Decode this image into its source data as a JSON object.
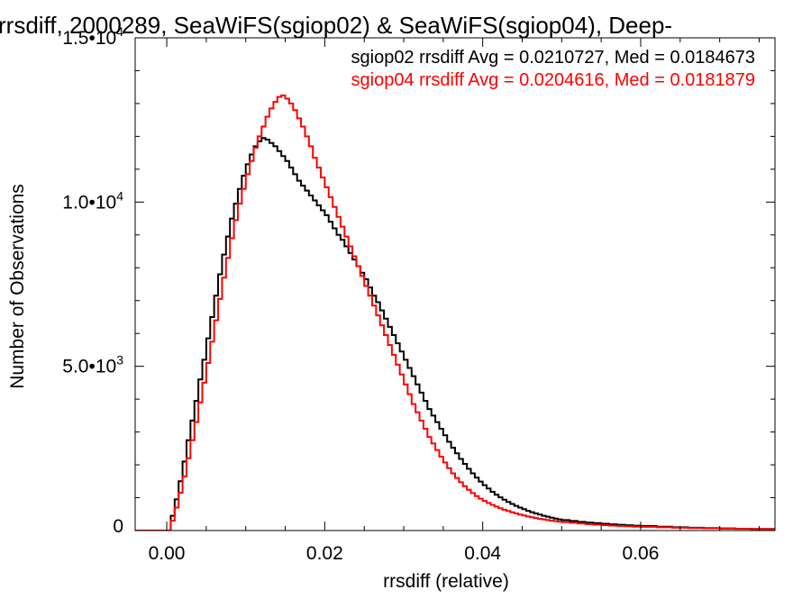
{
  "chart_data": {
    "type": "line",
    "step": true,
    "title": "rrsdiff, 2000289, SeaWiFS(sgiop02) & SeaWiFS(sgiop04), Deep-",
    "xlabel": "rrsdiff (relative)",
    "ylabel": "Number of Observations",
    "xlim": [
      -0.004,
      0.077
    ],
    "ylim": [
      0,
      15000
    ],
    "x_ticks": [
      {
        "value": 0.0,
        "label": "0.00"
      },
      {
        "value": 0.02,
        "label": "0.02"
      },
      {
        "value": 0.04,
        "label": "0.04"
      },
      {
        "value": 0.06,
        "label": "0.06"
      }
    ],
    "y_ticks": [
      {
        "value": 0,
        "label": "0",
        "exp": ""
      },
      {
        "value": 5000,
        "label": "5.0•10",
        "exp": "3"
      },
      {
        "value": 10000,
        "label": "1.0•10",
        "exp": "4"
      },
      {
        "value": 15000,
        "label": "1.5•10",
        "exp": "4"
      }
    ],
    "grid": false,
    "annotations": [
      {
        "text": "sgiop02 rrsdiff Avg = 0.0210727, Med = 0.0184673",
        "color": "#000000"
      },
      {
        "text": "sgiop04 rrsdiff Avg = 0.0204616, Med = 0.0181879",
        "color": "#ff0000"
      }
    ],
    "series": [
      {
        "color": "#000000",
        "points": [
          [
            -0.004,
            0
          ],
          [
            0.0,
            0
          ],
          [
            0.0005,
            450
          ],
          [
            0.001,
            950
          ],
          [
            0.0015,
            1500
          ],
          [
            0.002,
            2100
          ],
          [
            0.0025,
            2750
          ],
          [
            0.003,
            3350
          ],
          [
            0.0035,
            3950
          ],
          [
            0.004,
            4600
          ],
          [
            0.0045,
            5200
          ],
          [
            0.005,
            5850
          ],
          [
            0.0055,
            6500
          ],
          [
            0.006,
            7150
          ],
          [
            0.0065,
            7800
          ],
          [
            0.007,
            8400
          ],
          [
            0.0075,
            8950
          ],
          [
            0.008,
            9500
          ],
          [
            0.0085,
            9950
          ],
          [
            0.009,
            10400
          ],
          [
            0.0095,
            10800
          ],
          [
            0.01,
            11150
          ],
          [
            0.0105,
            11450
          ],
          [
            0.011,
            11700
          ],
          [
            0.0115,
            11850
          ],
          [
            0.012,
            11950
          ],
          [
            0.0125,
            11900
          ],
          [
            0.013,
            11800
          ],
          [
            0.0135,
            11700
          ],
          [
            0.014,
            11550
          ],
          [
            0.0145,
            11400
          ],
          [
            0.015,
            11250
          ],
          [
            0.0155,
            11050
          ],
          [
            0.016,
            10850
          ],
          [
            0.0165,
            10650
          ],
          [
            0.017,
            10500
          ],
          [
            0.0175,
            10350
          ],
          [
            0.018,
            10200
          ],
          [
            0.0185,
            10050
          ],
          [
            0.019,
            9900
          ],
          [
            0.0195,
            9750
          ],
          [
            0.02,
            9600
          ],
          [
            0.0205,
            9400
          ],
          [
            0.021,
            9200
          ],
          [
            0.0215,
            9000
          ],
          [
            0.022,
            8850
          ],
          [
            0.0225,
            8650
          ],
          [
            0.023,
            8450
          ],
          [
            0.0235,
            8250
          ],
          [
            0.024,
            8050
          ],
          [
            0.0245,
            7850
          ],
          [
            0.025,
            7650
          ],
          [
            0.0255,
            7400
          ],
          [
            0.026,
            7150
          ],
          [
            0.0265,
            6950
          ],
          [
            0.027,
            6700
          ],
          [
            0.0275,
            6450
          ],
          [
            0.028,
            6200
          ],
          [
            0.0285,
            5950
          ],
          [
            0.029,
            5700
          ],
          [
            0.0295,
            5450
          ],
          [
            0.03,
            5200
          ],
          [
            0.0305,
            4950
          ],
          [
            0.031,
            4700
          ],
          [
            0.0315,
            4450
          ],
          [
            0.032,
            4200
          ],
          [
            0.0325,
            3950
          ],
          [
            0.033,
            3700
          ],
          [
            0.0335,
            3500
          ],
          [
            0.034,
            3300
          ],
          [
            0.0345,
            3100
          ],
          [
            0.035,
            2900
          ],
          [
            0.0355,
            2700
          ],
          [
            0.036,
            2520
          ],
          [
            0.0365,
            2350
          ],
          [
            0.037,
            2180
          ],
          [
            0.0375,
            2030
          ],
          [
            0.038,
            1880
          ],
          [
            0.0385,
            1740
          ],
          [
            0.039,
            1610
          ],
          [
            0.0395,
            1490
          ],
          [
            0.04,
            1380
          ],
          [
            0.0405,
            1280
          ],
          [
            0.041,
            1180
          ],
          [
            0.0415,
            1090
          ],
          [
            0.042,
            1010
          ],
          [
            0.0425,
            940
          ],
          [
            0.043,
            870
          ],
          [
            0.0435,
            810
          ],
          [
            0.044,
            750
          ],
          [
            0.0445,
            700
          ],
          [
            0.045,
            650
          ],
          [
            0.0455,
            600
          ],
          [
            0.046,
            560
          ],
          [
            0.0465,
            520
          ],
          [
            0.047,
            485
          ],
          [
            0.0475,
            450
          ],
          [
            0.048,
            420
          ],
          [
            0.0485,
            390
          ],
          [
            0.049,
            365
          ],
          [
            0.0495,
            340
          ],
          [
            0.05,
            318
          ],
          [
            0.051,
            290
          ],
          [
            0.052,
            265
          ],
          [
            0.053,
            245
          ],
          [
            0.054,
            225
          ],
          [
            0.055,
            205
          ],
          [
            0.056,
            190
          ],
          [
            0.057,
            175
          ],
          [
            0.058,
            160
          ],
          [
            0.059,
            148
          ],
          [
            0.06,
            136
          ],
          [
            0.062,
            118
          ],
          [
            0.064,
            100
          ],
          [
            0.066,
            86
          ],
          [
            0.068,
            74
          ],
          [
            0.07,
            64
          ],
          [
            0.072,
            55
          ],
          [
            0.074,
            48
          ],
          [
            0.077,
            40
          ]
        ]
      },
      {
        "color": "#ff0000",
        "points": [
          [
            -0.004,
            0
          ],
          [
            0.0,
            0
          ],
          [
            0.0005,
            300
          ],
          [
            0.001,
            700
          ],
          [
            0.0015,
            1150
          ],
          [
            0.002,
            1650
          ],
          [
            0.0025,
            2200
          ],
          [
            0.003,
            2750
          ],
          [
            0.0035,
            3300
          ],
          [
            0.004,
            3900
          ],
          [
            0.0045,
            4500
          ],
          [
            0.005,
            5100
          ],
          [
            0.0055,
            5750
          ],
          [
            0.006,
            6400
          ],
          [
            0.0065,
            7050
          ],
          [
            0.007,
            7700
          ],
          [
            0.0075,
            8300
          ],
          [
            0.008,
            8900
          ],
          [
            0.0085,
            9450
          ],
          [
            0.009,
            9950
          ],
          [
            0.0095,
            10400
          ],
          [
            0.01,
            10850
          ],
          [
            0.0105,
            11250
          ],
          [
            0.011,
            11650
          ],
          [
            0.0115,
            12000
          ],
          [
            0.012,
            12300
          ],
          [
            0.0125,
            12600
          ],
          [
            0.013,
            12850
          ],
          [
            0.0135,
            13050
          ],
          [
            0.014,
            13200
          ],
          [
            0.0145,
            13250
          ],
          [
            0.015,
            13150
          ],
          [
            0.0155,
            13000
          ],
          [
            0.016,
            12800
          ],
          [
            0.0165,
            12550
          ],
          [
            0.017,
            12300
          ],
          [
            0.0175,
            12000
          ],
          [
            0.018,
            11700
          ],
          [
            0.0185,
            11350
          ],
          [
            0.019,
            11050
          ],
          [
            0.0195,
            10750
          ],
          [
            0.02,
            10450
          ],
          [
            0.0205,
            10150
          ],
          [
            0.021,
            9850
          ],
          [
            0.0215,
            9550
          ],
          [
            0.022,
            9250
          ],
          [
            0.0225,
            8950
          ],
          [
            0.023,
            8650
          ],
          [
            0.0235,
            8350
          ],
          [
            0.024,
            8050
          ],
          [
            0.0245,
            7750
          ],
          [
            0.025,
            7450
          ],
          [
            0.0255,
            7150
          ],
          [
            0.026,
            6850
          ],
          [
            0.0265,
            6550
          ],
          [
            0.027,
            6250
          ],
          [
            0.0275,
            5950
          ],
          [
            0.028,
            5650
          ],
          [
            0.0285,
            5350
          ],
          [
            0.029,
            5050
          ],
          [
            0.0295,
            4750
          ],
          [
            0.03,
            4450
          ],
          [
            0.0305,
            4150
          ],
          [
            0.031,
            3850
          ],
          [
            0.0315,
            3600
          ],
          [
            0.032,
            3350
          ],
          [
            0.0325,
            3100
          ],
          [
            0.033,
            2850
          ],
          [
            0.0335,
            2650
          ],
          [
            0.034,
            2450
          ],
          [
            0.0345,
            2250
          ],
          [
            0.035,
            2070
          ],
          [
            0.0355,
            1900
          ],
          [
            0.036,
            1740
          ],
          [
            0.0365,
            1600
          ],
          [
            0.037,
            1470
          ],
          [
            0.0375,
            1350
          ],
          [
            0.038,
            1240
          ],
          [
            0.0385,
            1140
          ],
          [
            0.039,
            1050
          ],
          [
            0.0395,
            970
          ],
          [
            0.04,
            900
          ],
          [
            0.0405,
            840
          ],
          [
            0.041,
            780
          ],
          [
            0.0415,
            730
          ],
          [
            0.042,
            680
          ],
          [
            0.0425,
            635
          ],
          [
            0.043,
            595
          ],
          [
            0.0435,
            555
          ],
          [
            0.044,
            520
          ],
          [
            0.0445,
            488
          ],
          [
            0.045,
            458
          ],
          [
            0.0455,
            430
          ],
          [
            0.046,
            404
          ],
          [
            0.0465,
            380
          ],
          [
            0.047,
            358
          ],
          [
            0.0475,
            338
          ],
          [
            0.048,
            320
          ],
          [
            0.0485,
            302
          ],
          [
            0.049,
            286
          ],
          [
            0.0495,
            272
          ],
          [
            0.05,
            258
          ],
          [
            0.051,
            235
          ],
          [
            0.052,
            215
          ],
          [
            0.053,
            197
          ],
          [
            0.054,
            180
          ],
          [
            0.055,
            165
          ],
          [
            0.056,
            152
          ],
          [
            0.057,
            140
          ],
          [
            0.058,
            130
          ],
          [
            0.059,
            120
          ],
          [
            0.06,
            112
          ],
          [
            0.062,
            98
          ],
          [
            0.064,
            86
          ],
          [
            0.066,
            76
          ],
          [
            0.068,
            67
          ],
          [
            0.07,
            59
          ],
          [
            0.072,
            52
          ],
          [
            0.074,
            46
          ],
          [
            0.077,
            40
          ]
        ]
      }
    ]
  }
}
